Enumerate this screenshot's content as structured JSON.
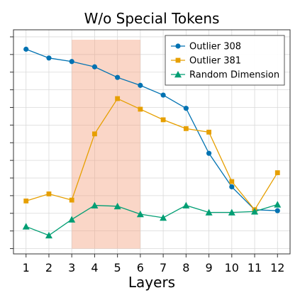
{
  "chart_data": {
    "type": "line",
    "title": "W/o Special Tokens",
    "xlabel": "Layers",
    "ylabel": "",
    "x": [
      1,
      2,
      3,
      4,
      5,
      6,
      7,
      8,
      9,
      10,
      11,
      12
    ],
    "xlim": [
      0.45,
      12.55
    ],
    "ylim": [
      -0.3,
      12.4
    ],
    "y_ticks_unlabeled": [
      0,
      1,
      2,
      3,
      4,
      5,
      6,
      7,
      8,
      9,
      10,
      11,
      12
    ],
    "grid": true,
    "legend_position": "top-right",
    "highlight_span": {
      "x_start": 3,
      "x_end": 6,
      "color": "#f4a582"
    },
    "series": [
      {
        "name": "Outlier 308",
        "color": "#0072b2",
        "marker": "circle",
        "values": [
          11.3,
          10.8,
          10.6,
          10.3,
          9.7,
          9.25,
          8.7,
          7.95,
          5.4,
          3.5,
          2.2,
          2.15
        ]
      },
      {
        "name": "Outlier 381",
        "color": "#e69f00",
        "marker": "square",
        "values": [
          2.7,
          3.1,
          2.75,
          6.5,
          8.5,
          7.9,
          7.3,
          6.8,
          6.6,
          3.8,
          2.2,
          4.3
        ]
      },
      {
        "name": "Random Dimension",
        "color": "#009e73",
        "marker": "triangle",
        "values": [
          1.25,
          0.75,
          1.65,
          2.45,
          2.4,
          1.95,
          1.75,
          2.45,
          2.05,
          2.05,
          2.1,
          2.5
        ]
      }
    ]
  }
}
